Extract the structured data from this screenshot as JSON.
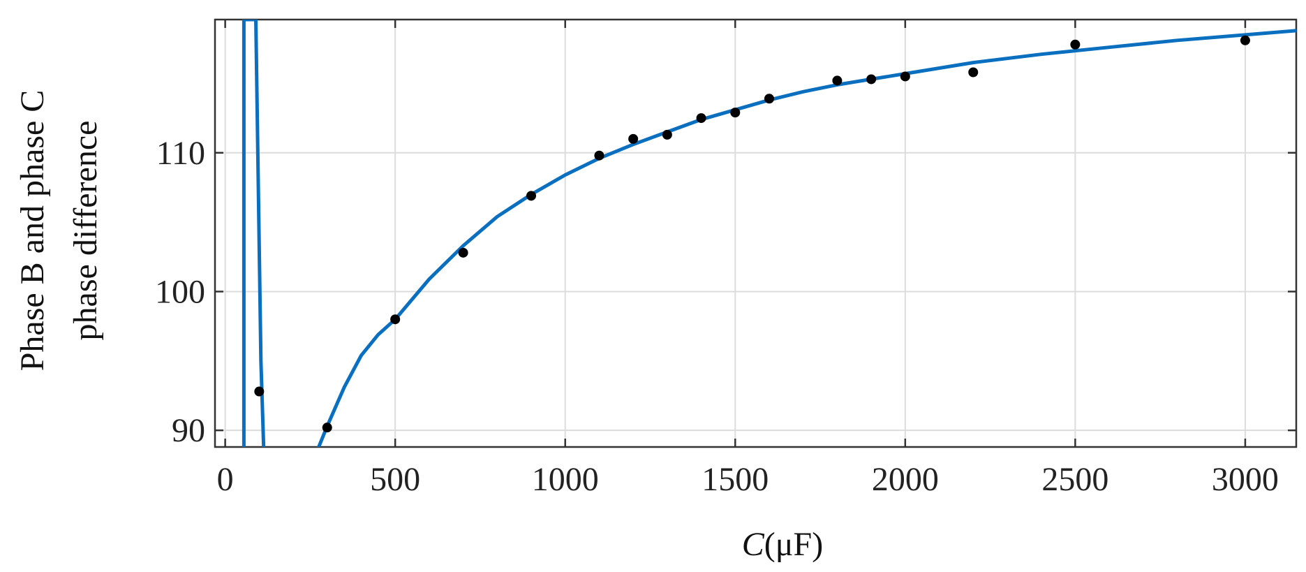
{
  "chart_data": {
    "type": "scatter",
    "xlabel_symbol": "C",
    "xlabel_unit": "(μF)",
    "ylabel_line1": "Phase B and phase C",
    "ylabel_line2": "phase difference",
    "xlim": [
      -30,
      3150
    ],
    "ylim": [
      88.8,
      119.6
    ],
    "x_ticks": [
      0,
      500,
      1000,
      1500,
      2000,
      2500,
      3000
    ],
    "y_ticks": [
      90,
      100,
      110
    ],
    "grid": true,
    "colors": {
      "fit_line": "#0a6fbf",
      "points": "#000000",
      "axis": "#333333",
      "grid": "#dcdcdc"
    },
    "series": [
      {
        "kind": "points",
        "x": [
          100,
          300,
          500,
          700,
          900,
          1100,
          1200,
          1300,
          1400,
          1500,
          1600,
          1800,
          1900,
          2000,
          2200,
          2500,
          3000
        ],
        "y": [
          92.8,
          90.2,
          98.0,
          102.8,
          106.9,
          109.8,
          111.0,
          111.3,
          112.5,
          112.9,
          113.9,
          115.2,
          115.3,
          115.5,
          115.8,
          117.8,
          118.1
        ]
      },
      {
        "kind": "fit-curve",
        "x": [
          275,
          300,
          350,
          400,
          450,
          500,
          600,
          700,
          800,
          900,
          1000,
          1100,
          1200,
          1300,
          1400,
          1500,
          1600,
          1700,
          1800,
          1900,
          2000,
          2200,
          2400,
          2600,
          2800,
          3000,
          3150
        ],
        "y": [
          88.8,
          90.3,
          93.1,
          95.4,
          96.9,
          98.0,
          100.9,
          103.3,
          105.4,
          107.0,
          108.4,
          109.6,
          110.6,
          111.5,
          112.4,
          113.1,
          113.8,
          114.4,
          114.9,
          115.3,
          115.7,
          116.5,
          117.1,
          117.6,
          118.1,
          118.5,
          118.8
        ]
      },
      {
        "kind": "fit-curve",
        "x": [
          55,
          55,
          90,
          105,
          113
        ],
        "y": [
          88.8,
          119.6,
          119.6,
          95.0,
          88.8
        ]
      }
    ]
  }
}
